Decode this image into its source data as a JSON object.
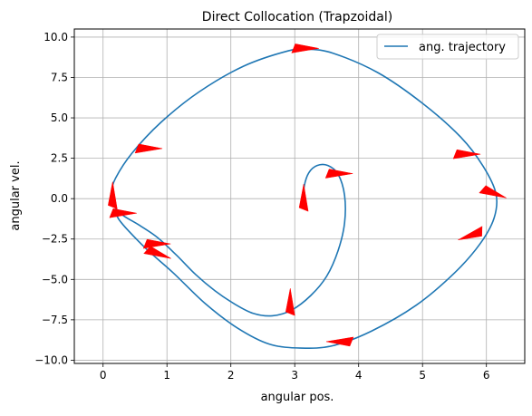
{
  "chart_data": {
    "type": "line",
    "title": "Direct Collocation (Trapzoidal)",
    "xlabel": "angular pos.",
    "ylabel": "angular vel.",
    "xlim": [
      -0.45,
      6.6
    ],
    "ylim": [
      -10.2,
      10.5
    ],
    "xticks": [
      0,
      1,
      2,
      3,
      4,
      5,
      6
    ],
    "xtick_labels": [
      "0",
      "1",
      "2",
      "3",
      "4",
      "5",
      "6"
    ],
    "yticks": [
      -10.0,
      -7.5,
      -5.0,
      -2.5,
      0.0,
      2.5,
      5.0,
      7.5,
      10.0
    ],
    "ytick_labels": [
      "−10.0",
      "−7.5",
      "−5.0",
      "−2.5",
      "0.0",
      "2.5",
      "5.0",
      "7.5",
      "10.0"
    ],
    "grid": true,
    "legend_position": "upper right",
    "series": [
      {
        "name": "ang. trajectory",
        "color": "#1f77b4",
        "x": [
          3.14,
          3.15,
          3.22,
          3.35,
          3.52,
          3.68,
          3.78,
          3.78,
          3.68,
          3.5,
          3.25,
          2.95,
          2.65,
          2.35,
          2.05,
          1.75,
          1.45,
          1.15,
          0.85,
          0.55,
          0.3,
          0.15,
          0.13,
          0.2,
          0.45,
          0.9,
          1.5,
          2.2,
          2.9,
          3.2,
          3.6,
          4.3,
          5.0,
          5.6,
          5.95,
          6.15,
          6.12,
          5.9,
          5.5,
          4.9,
          4.2,
          3.6,
          3.1,
          2.6,
          2.1,
          1.6,
          1.1,
          0.7,
          0.4,
          0.25,
          0.2
        ],
        "y": [
          0.0,
          0.8,
          1.6,
          2.05,
          2.05,
          1.5,
          0.2,
          -1.5,
          -3.2,
          -4.8,
          -6.0,
          -6.9,
          -7.25,
          -7.1,
          -6.5,
          -5.7,
          -4.7,
          -3.5,
          -2.4,
          -1.6,
          -1.0,
          -0.3,
          0.4,
          1.3,
          2.8,
          4.7,
          6.6,
          8.2,
          9.15,
          9.25,
          9.0,
          7.8,
          5.9,
          3.8,
          2.0,
          0.3,
          -1.2,
          -2.8,
          -4.6,
          -6.6,
          -8.2,
          -9.1,
          -9.25,
          -9.0,
          -8.0,
          -6.5,
          -4.6,
          -3.2,
          -2.0,
          -1.3,
          -0.9
        ]
      }
    ],
    "annotations": {
      "type": "arrow-markers",
      "color": "#ff0000",
      "markers": [
        {
          "x": 3.14,
          "y": 0.0,
          "dir": "up"
        },
        {
          "x": 3.68,
          "y": 1.55,
          "dir": "right"
        },
        {
          "x": 3.15,
          "y": 9.3,
          "dir": "right"
        },
        {
          "x": 5.68,
          "y": 2.75,
          "dir": "right"
        },
        {
          "x": 6.1,
          "y": 0.35,
          "dir": "down-right"
        },
        {
          "x": 5.77,
          "y": -2.25,
          "dir": "down-left"
        },
        {
          "x": 3.72,
          "y": -8.85,
          "dir": "left"
        },
        {
          "x": 2.93,
          "y": -6.45,
          "dir": "up"
        },
        {
          "x": 0.83,
          "y": -2.8,
          "dir": "right"
        },
        {
          "x": 0.85,
          "y": -3.4,
          "dir": "down-right"
        },
        {
          "x": 0.3,
          "y": -0.9,
          "dir": "right"
        },
        {
          "x": 0.15,
          "y": 0.15,
          "dir": "up"
        },
        {
          "x": 0.7,
          "y": 3.1,
          "dir": "right"
        }
      ]
    }
  }
}
